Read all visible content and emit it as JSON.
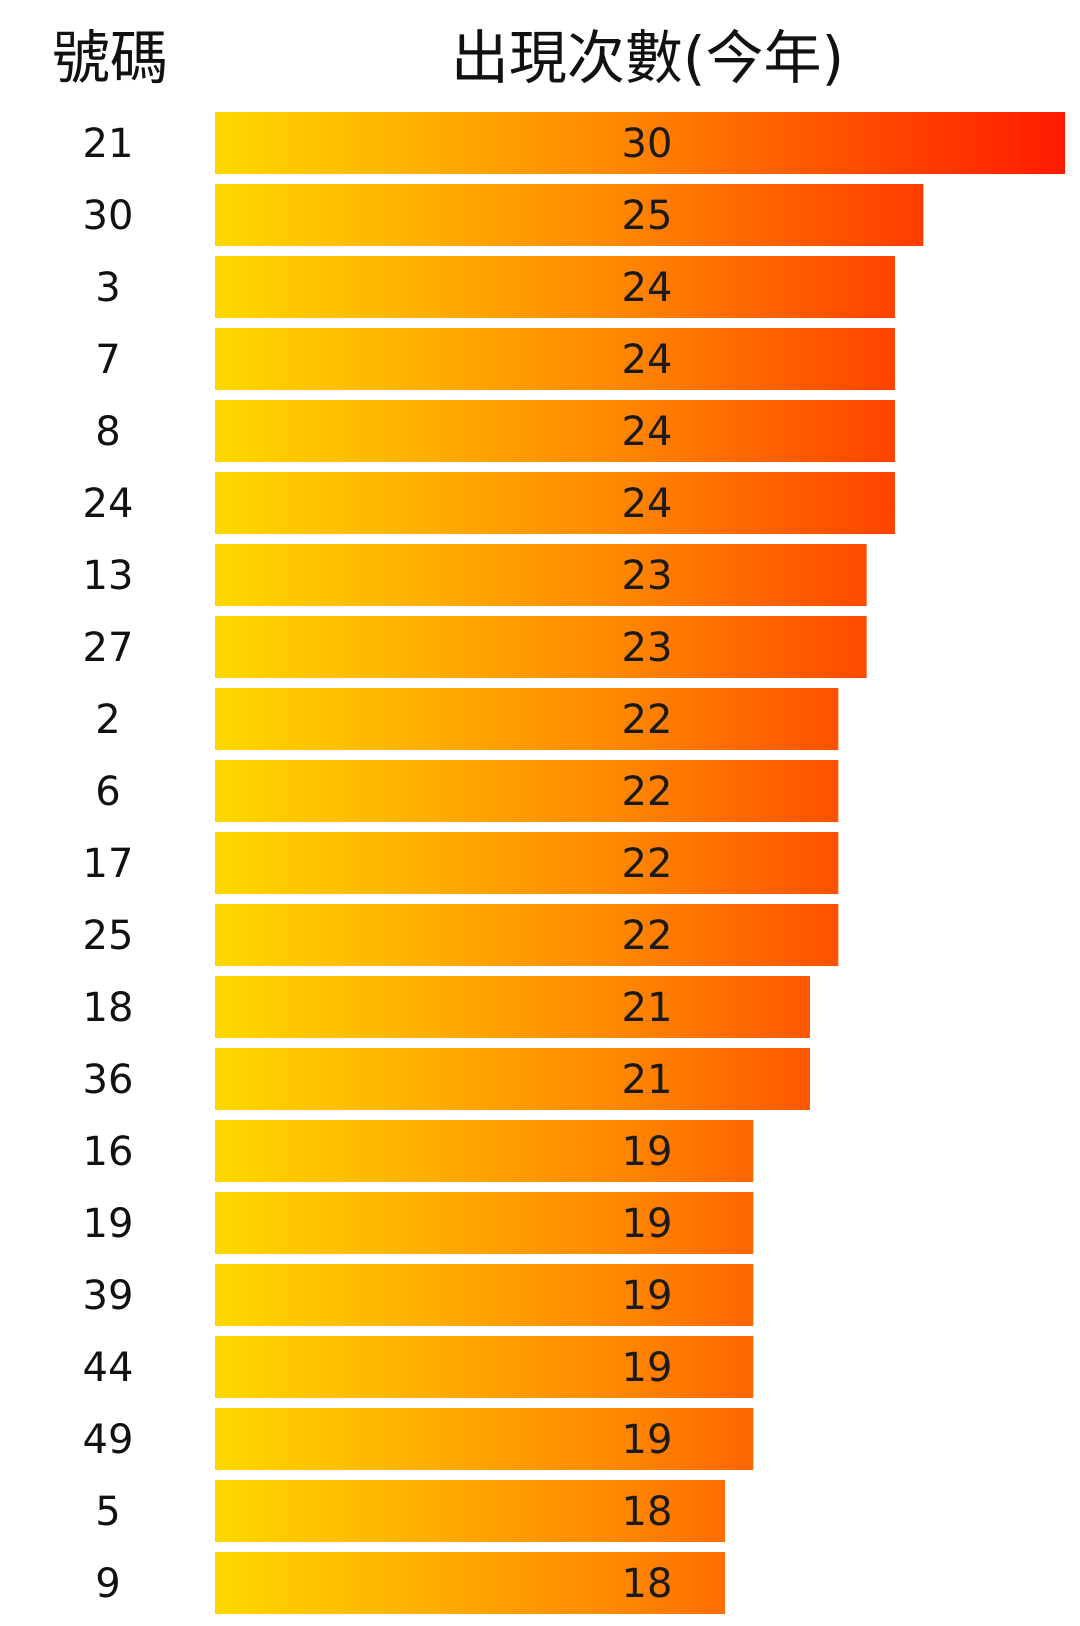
{
  "chart_data": {
    "type": "bar",
    "orientation": "horizontal",
    "column_headers": {
      "category": "號碼",
      "value": "出現次數(今年)"
    },
    "categories": [
      "21",
      "30",
      "3",
      "7",
      "8",
      "24",
      "13",
      "27",
      "2",
      "6",
      "17",
      "25",
      "18",
      "36",
      "16",
      "19",
      "39",
      "44",
      "49",
      "5",
      "9"
    ],
    "values": [
      30,
      25,
      24,
      24,
      24,
      24,
      23,
      23,
      22,
      22,
      22,
      22,
      21,
      21,
      19,
      19,
      19,
      19,
      19,
      18,
      18
    ],
    "xlim": [
      0,
      30
    ],
    "grid": false,
    "legend": "none",
    "colors": {
      "gradient_start": "#FFD700",
      "gradient_mid": "#FF8C00",
      "gradient_end": "#FF1A00"
    }
  }
}
